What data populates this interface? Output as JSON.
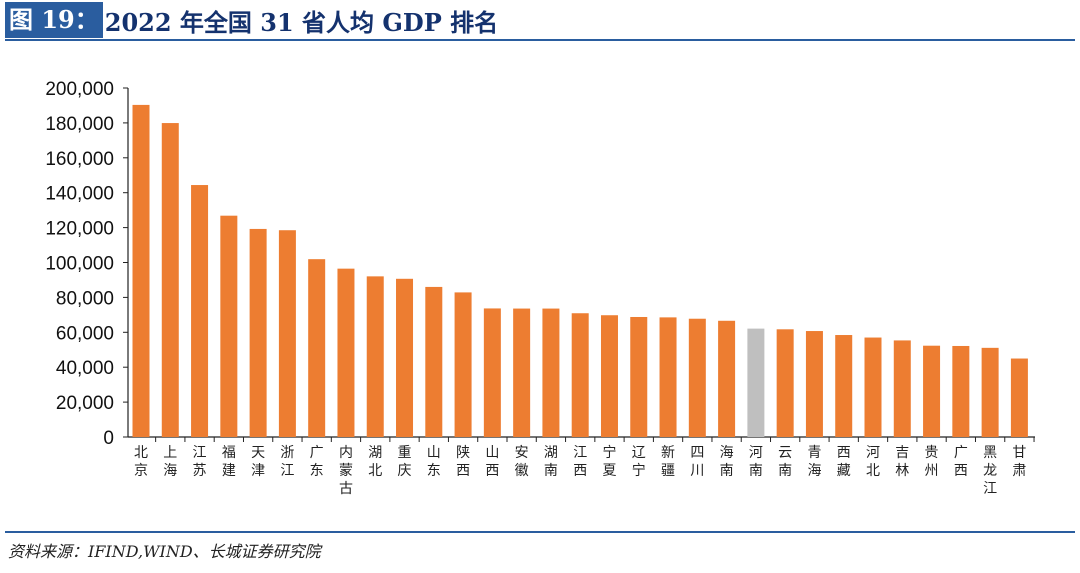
{
  "header": {
    "figure_label": "图 19：",
    "title": "2022 年全国 31 省人均 GDP 排名"
  },
  "source": "资料来源：IFIND,WIND、长城证券研究院",
  "colors": {
    "bar": "#ed7d31",
    "highlight": "#bfbfbf",
    "rule": "#2a5d9f"
  },
  "chart_data": {
    "type": "bar",
    "title": "2022 年全国 31 省人均 GDP 排名",
    "xlabel": "",
    "ylabel": "",
    "ylim": [
      0,
      200000
    ],
    "yticks": [
      "0",
      "20,000",
      "40,000",
      "60,000",
      "80,000",
      "100,000",
      "120,000",
      "140,000",
      "160,000",
      "180,000",
      "200,000"
    ],
    "categories": [
      "北京",
      "上海",
      "江苏",
      "福建",
      "天津",
      "浙江",
      "广东",
      "内蒙古",
      "湖北",
      "重庆",
      "山东",
      "陕西",
      "山西",
      "安徽",
      "湖南",
      "江西",
      "宁夏",
      "辽宁",
      "新疆",
      "四川",
      "海南",
      "河南",
      "云南",
      "青海",
      "西藏",
      "河北",
      "吉林",
      "贵州",
      "广西",
      "黑龙江",
      "甘肃"
    ],
    "values": [
      190313,
      179907,
      144390,
      126829,
      119235,
      118496,
      101905,
      96474,
      92059,
      90663,
      86003,
      82864,
      73675,
      73603,
      73598,
      70923,
      69781,
      68775,
      68552,
      67777,
      66602,
      62106,
      61716,
      60724,
      58438,
      56995,
      55347,
      52321,
      52164,
      51096,
      44968
    ],
    "highlight_category": "河南"
  }
}
